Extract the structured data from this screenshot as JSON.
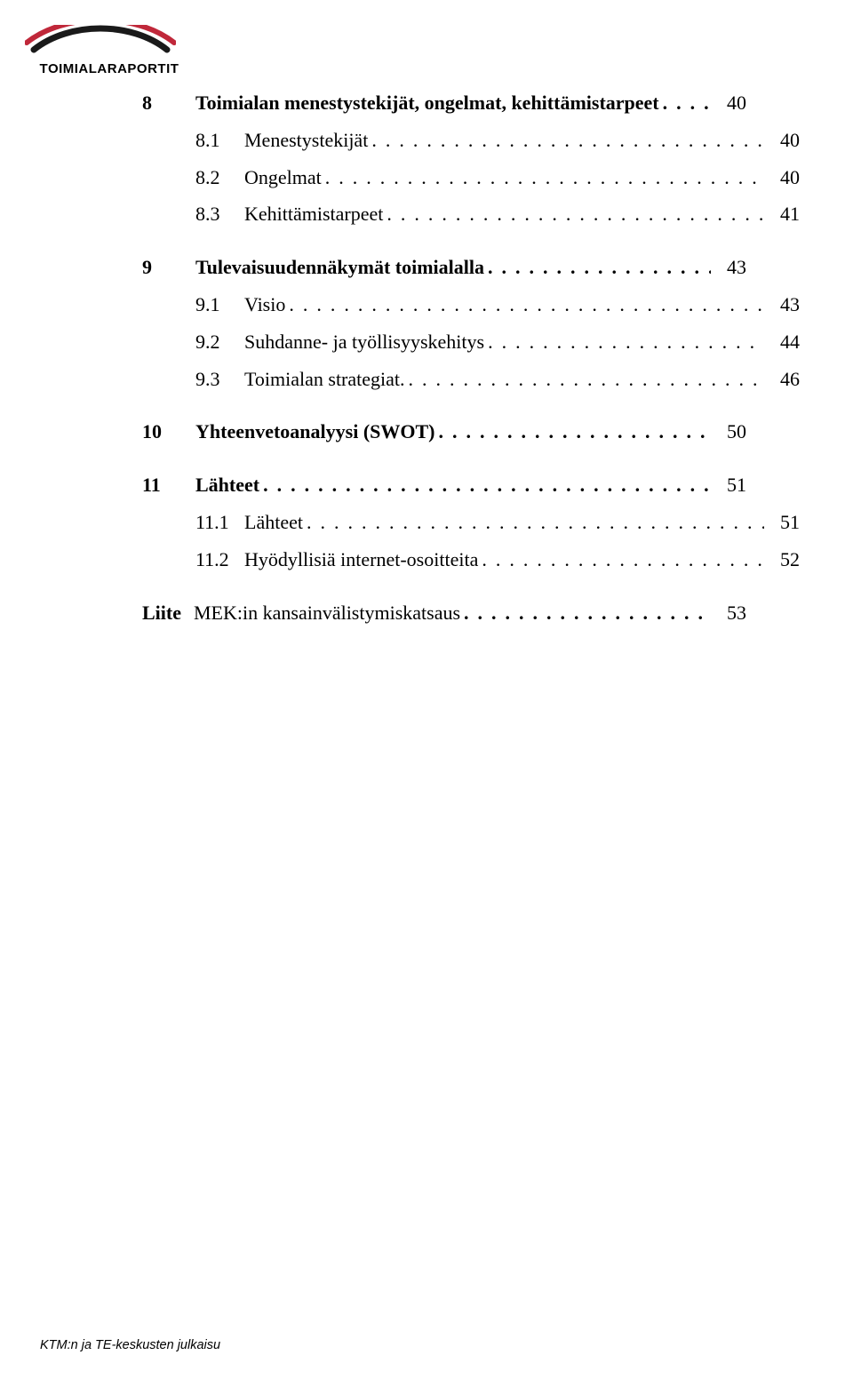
{
  "logo": {
    "text": "TOIMIALARAPORTIT",
    "colors": {
      "black": "#1a1a1a",
      "red": "#c0283a"
    }
  },
  "leader_char": ".",
  "toc": [
    {
      "level": 1,
      "num": "8",
      "title": "Toimialan menestystekijät, ongelmat, kehittämistarpeet",
      "page": "40"
    },
    {
      "level": 2,
      "num": "8.1",
      "title": "Menestystekijät",
      "page": "40"
    },
    {
      "level": 2,
      "num": "8.2",
      "title": "Ongelmat",
      "page": "40"
    },
    {
      "level": 2,
      "num": "8.3",
      "title": "Kehittämistarpeet",
      "page": "41"
    },
    {
      "gap": true
    },
    {
      "level": 1,
      "num": "9",
      "title": "Tulevaisuudennäkymät toimialalla",
      "page": "43"
    },
    {
      "level": 2,
      "num": "9.1",
      "title": "Visio",
      "page": "43"
    },
    {
      "level": 2,
      "num": "9.2",
      "title": "Suhdanne- ja työllisyyskehitys",
      "page": "44"
    },
    {
      "level": 2,
      "num": "9.3",
      "title": "Toimialan strategiat.",
      "page": "46"
    },
    {
      "gap": true
    },
    {
      "level": 1,
      "num": "10",
      "title": "Yhteenvetoanalyysi (SWOT)",
      "page": "50"
    },
    {
      "gap": true
    },
    {
      "level": 1,
      "num": "11",
      "title": "Lähteet",
      "page": "51"
    },
    {
      "level": 2,
      "num": "11.1",
      "title": "Lähteet",
      "page": "51"
    },
    {
      "level": 2,
      "num": "11.2",
      "title": "Hyödyllisiä internet-osoitteita",
      "page": "52"
    },
    {
      "gap": true
    },
    {
      "level": "liite",
      "num": "Liite",
      "title": "MEK:in kansainvälistymiskatsaus",
      "page": "53"
    }
  ],
  "footer": "KTM:n ja TE-keskusten julkaisu"
}
